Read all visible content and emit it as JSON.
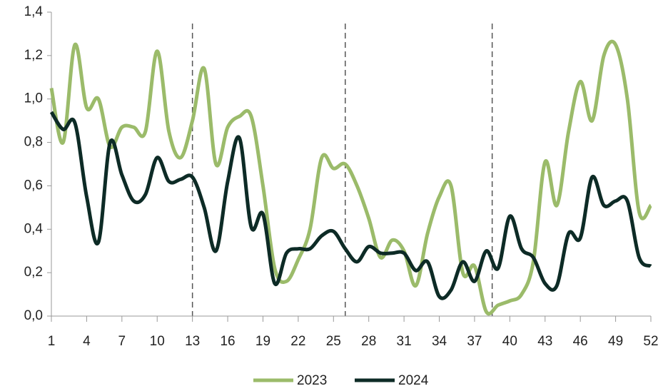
{
  "chart_data": {
    "type": "line",
    "x": [
      1,
      2,
      3,
      4,
      5,
      6,
      7,
      8,
      9,
      10,
      11,
      12,
      13,
      14,
      15,
      16,
      17,
      18,
      19,
      20,
      21,
      22,
      23,
      24,
      25,
      26,
      27,
      28,
      29,
      30,
      31,
      32,
      33,
      34,
      35,
      36,
      37,
      38,
      39,
      40,
      41,
      42,
      43,
      44,
      45,
      46,
      47,
      48,
      49,
      50,
      51,
      52
    ],
    "series": [
      {
        "name": "2023",
        "color": "#9bbb6a",
        "values": [
          1.05,
          0.8,
          1.25,
          0.96,
          1.0,
          0.78,
          0.87,
          0.87,
          0.85,
          1.22,
          0.85,
          0.73,
          0.9,
          1.14,
          0.7,
          0.87,
          0.92,
          0.92,
          0.6,
          0.22,
          0.16,
          0.26,
          0.4,
          0.73,
          0.68,
          0.7,
          0.6,
          0.45,
          0.27,
          0.35,
          0.3,
          0.14,
          0.38,
          0.55,
          0.6,
          0.2,
          0.23,
          0.02,
          0.05,
          0.07,
          0.1,
          0.25,
          0.71,
          0.51,
          0.85,
          1.08,
          0.9,
          1.2,
          1.25,
          1.0,
          0.48,
          0.51
        ]
      },
      {
        "name": "2024",
        "color": "#0d2b26",
        "values": [
          0.94,
          0.86,
          0.89,
          0.55,
          0.34,
          0.8,
          0.65,
          0.53,
          0.56,
          0.73,
          0.62,
          0.63,
          0.64,
          0.5,
          0.3,
          0.62,
          0.82,
          0.41,
          0.47,
          0.15,
          0.29,
          0.31,
          0.31,
          0.37,
          0.39,
          0.31,
          0.25,
          0.32,
          0.29,
          0.29,
          0.29,
          0.21,
          0.25,
          0.09,
          0.12,
          0.25,
          0.16,
          0.3,
          0.22,
          0.46,
          0.31,
          0.27,
          0.15,
          0.14,
          0.38,
          0.36,
          0.64,
          0.51,
          0.53,
          0.53,
          0.27,
          0.23
        ]
      }
    ],
    "xlim": [
      1,
      52
    ],
    "xticks": [
      1,
      4,
      7,
      10,
      13,
      16,
      19,
      22,
      25,
      28,
      31,
      34,
      37,
      40,
      43,
      46,
      49,
      52
    ],
    "ylim": [
      0,
      1.4
    ],
    "yticks": [
      {
        "value": 0,
        "label": "0,0"
      },
      {
        "value": 0.2,
        "label": "0,2"
      },
      {
        "value": 0.4,
        "label": "0,4"
      },
      {
        "value": 0.6,
        "label": "0,6"
      },
      {
        "value": 0.8,
        "label": "0,8"
      },
      {
        "value": 1.0,
        "label": "1,0"
      },
      {
        "value": 1.2,
        "label": "1,2"
      },
      {
        "value": 1.4,
        "label": "1,4"
      }
    ],
    "vlines": [
      13,
      26,
      38.5
    ],
    "legend": "bottom"
  }
}
